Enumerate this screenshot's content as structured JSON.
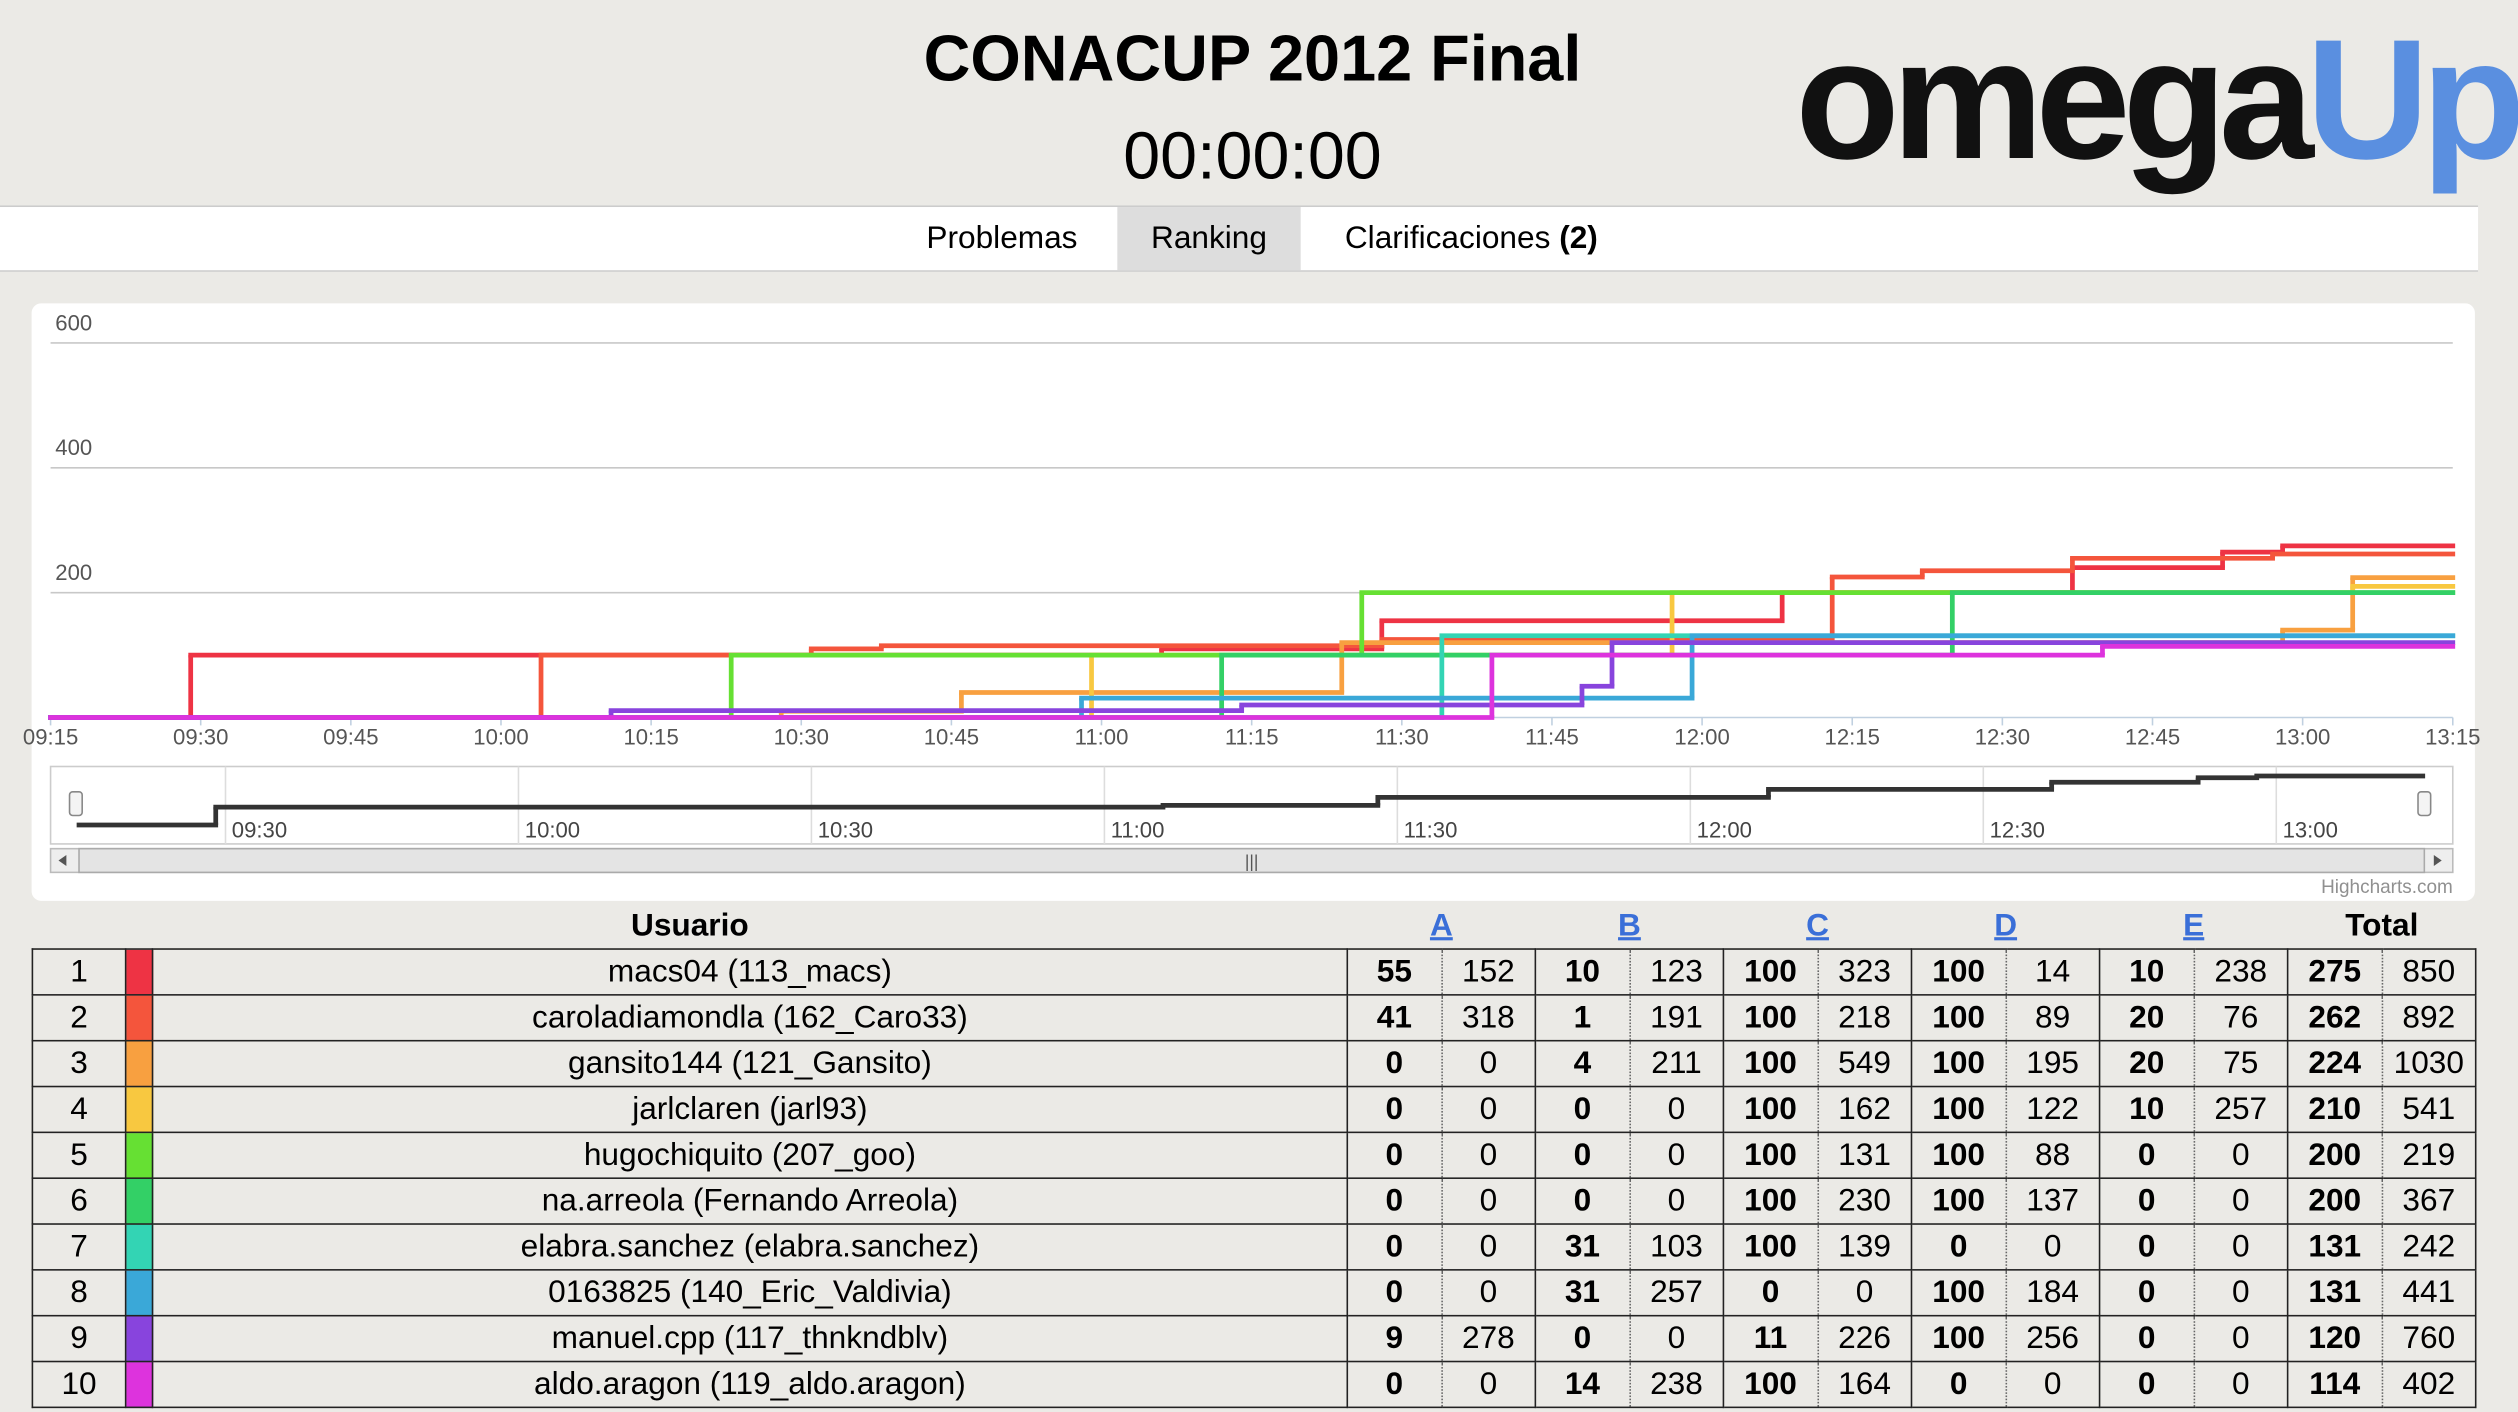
{
  "header": {
    "title": "CONACUP 2012 Final",
    "timer": "00:00:00",
    "logo": {
      "part1": "omega",
      "part2": "Up"
    }
  },
  "tabs": [
    {
      "label": "Problemas"
    },
    {
      "label": "Ranking"
    },
    {
      "label": "Clarificaciones",
      "badge": "(2)"
    }
  ],
  "chart_data": {
    "type": "line",
    "step": true,
    "grid": true,
    "xlim": [
      "09:15",
      "13:15"
    ],
    "xticks": [
      "09:15",
      "09:30",
      "09:45",
      "10:00",
      "10:15",
      "10:30",
      "10:45",
      "11:00",
      "11:15",
      "11:30",
      "11:45",
      "12:00",
      "12:15",
      "12:30",
      "12:45",
      "13:00",
      "13:15"
    ],
    "ylim": [
      0,
      600
    ],
    "yticks": [
      200,
      400,
      600
    ],
    "series": [
      {
        "color": "#ee3344",
        "x": [
          "09:15",
          "09:29",
          "11:06",
          "11:28",
          "12:08",
          "12:37",
          "12:52",
          "12:58"
        ],
        "values": [
          0,
          100,
          110,
          155,
          200,
          240,
          265,
          275
        ]
      },
      {
        "color": "#f4553c",
        "x": [
          "09:15",
          "10:04",
          "10:31",
          "10:38",
          "11:28",
          "12:13",
          "12:22",
          "12:37",
          "12:57"
        ],
        "values": [
          0,
          100,
          110,
          115,
          125,
          225,
          235,
          255,
          262
        ]
      },
      {
        "color": "#f8a040",
        "x": [
          "09:15",
          "10:28",
          "10:46",
          "11:24",
          "12:58",
          "13:05"
        ],
        "values": [
          0,
          10,
          40,
          120,
          140,
          224
        ]
      },
      {
        "color": "#f8c840",
        "x": [
          "09:15",
          "10:59",
          "11:57",
          "13:05"
        ],
        "values": [
          0,
          100,
          200,
          210
        ]
      },
      {
        "color": "#66e033",
        "x": [
          "09:15",
          "10:23",
          "11:26"
        ],
        "values": [
          0,
          100,
          200
        ]
      },
      {
        "color": "#33d066",
        "x": [
          "09:15",
          "11:12",
          "12:25"
        ],
        "values": [
          0,
          100,
          200
        ]
      },
      {
        "color": "#33d4b4",
        "x": [
          "09:15",
          "11:34"
        ],
        "values": [
          0,
          131
        ]
      },
      {
        "color": "#3aa8d8",
        "x": [
          "09:15",
          "10:58",
          "11:59"
        ],
        "values": [
          0,
          31,
          131
        ]
      },
      {
        "color": "#8844dd",
        "x": [
          "09:15",
          "10:11",
          "11:14",
          "11:48",
          "11:51"
        ],
        "values": [
          0,
          11,
          20,
          50,
          120
        ]
      },
      {
        "color": "#dd33dd",
        "x": [
          "09:15",
          "11:39",
          "12:40"
        ],
        "values": [
          0,
          100,
          114
        ]
      }
    ],
    "navigator_xticks": [
      "09:30",
      "10:00",
      "10:30",
      "11:00",
      "11:30",
      "12:00",
      "12:30",
      "13:00"
    ],
    "credit": "Highcharts.com"
  },
  "table": {
    "columns": [
      "Usuario",
      "A",
      "B",
      "C",
      "D",
      "E",
      "Total"
    ],
    "rows": [
      {
        "rank": 1,
        "user": "macs04 (113_macs)",
        "scores": [
          55,
          152,
          10,
          123,
          100,
          323,
          100,
          14,
          10,
          238,
          275,
          850
        ]
      },
      {
        "rank": 2,
        "user": "caroladiamondla (162_Caro33)",
        "scores": [
          41,
          318,
          1,
          191,
          100,
          218,
          100,
          89,
          20,
          76,
          262,
          892
        ]
      },
      {
        "rank": 3,
        "user": "gansito144 (121_Gansito)",
        "scores": [
          0,
          0,
          4,
          211,
          100,
          549,
          100,
          195,
          20,
          75,
          224,
          1030
        ]
      },
      {
        "rank": 4,
        "user": "jarlclaren (jarl93)",
        "scores": [
          0,
          0,
          0,
          0,
          100,
          162,
          100,
          122,
          10,
          257,
          210,
          541
        ]
      },
      {
        "rank": 5,
        "user": "hugochiquito (207_goo)",
        "scores": [
          0,
          0,
          0,
          0,
          100,
          131,
          100,
          88,
          0,
          0,
          200,
          219
        ]
      },
      {
        "rank": 6,
        "user": "na.arreola (Fernando Arreola)",
        "scores": [
          0,
          0,
          0,
          0,
          100,
          230,
          100,
          137,
          0,
          0,
          200,
          367
        ]
      },
      {
        "rank": 7,
        "user": "elabra.sanchez (elabra.sanchez)",
        "scores": [
          0,
          0,
          31,
          103,
          100,
          139,
          0,
          0,
          0,
          0,
          131,
          242
        ]
      },
      {
        "rank": 8,
        "user": "0163825 (140_Eric_Valdivia)",
        "scores": [
          0,
          0,
          31,
          257,
          0,
          0,
          100,
          184,
          0,
          0,
          131,
          441
        ]
      },
      {
        "rank": 9,
        "user": "manuel.cpp (117_thnkndblv)",
        "scores": [
          9,
          278,
          0,
          0,
          11,
          226,
          100,
          256,
          0,
          0,
          120,
          760
        ]
      },
      {
        "rank": 10,
        "user": "aldo.aragon (119_aldo.aragon)",
        "scores": [
          0,
          0,
          14,
          238,
          100,
          164,
          0,
          0,
          0,
          0,
          114,
          402
        ]
      }
    ]
  }
}
